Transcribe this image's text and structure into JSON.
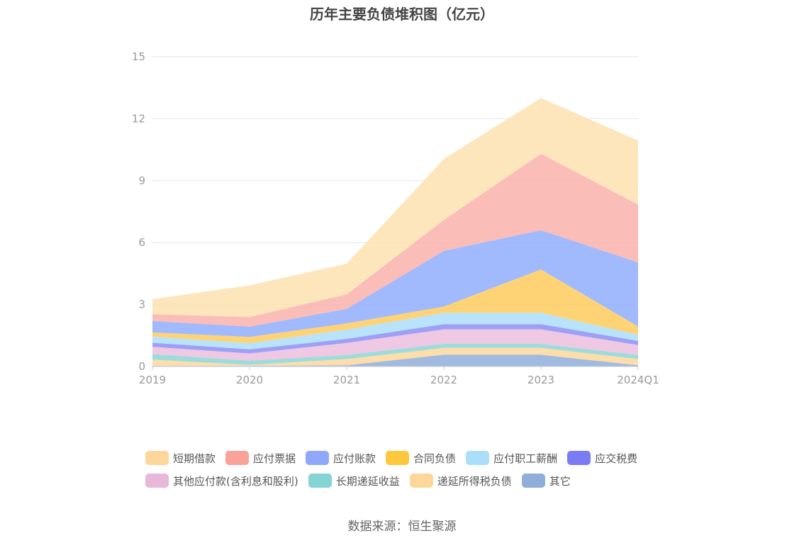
{
  "chart_data": {
    "type": "area",
    "stacked": true,
    "title": "历年主要负债堆积图（亿元）",
    "x": [
      "2019",
      "2020",
      "2021",
      "2022",
      "2023",
      "2024Q1"
    ],
    "ylim": [
      0,
      15
    ],
    "yticks": [
      "0",
      "3",
      "6",
      "9",
      "12",
      "15"
    ],
    "grid": "horizontal",
    "legend_position": "bottom",
    "series": [
      {
        "name": "其它",
        "color": "#8fafd9",
        "values": [
          0.03,
          0.03,
          0.06,
          0.57,
          0.57,
          0.06
        ]
      },
      {
        "name": "递延所得税负债",
        "color": "#fdd79a",
        "values": [
          0.3,
          0.05,
          0.3,
          0.33,
          0.33,
          0.3
        ]
      },
      {
        "name": "长期递延收益",
        "color": "#8dd6d6",
        "values": [
          0.27,
          0.2,
          0.2,
          0.2,
          0.2,
          0.2
        ]
      },
      {
        "name": "其他应付款(含利息和股利)",
        "color": "#ecbedf",
        "values": [
          0.35,
          0.35,
          0.58,
          0.7,
          0.7,
          0.48
        ]
      },
      {
        "name": "应交税费",
        "color": "#8d8ff5",
        "values": [
          0.2,
          0.2,
          0.2,
          0.25,
          0.25,
          0.2
        ]
      },
      {
        "name": "应付职工薪酬",
        "color": "#abdef9",
        "values": [
          0.3,
          0.3,
          0.45,
          0.55,
          0.55,
          0.3
        ]
      },
      {
        "name": "合同负债",
        "color": "#fdcb5e",
        "values": [
          0.2,
          0.3,
          0.3,
          0.3,
          2.1,
          0.4
        ]
      },
      {
        "name": "应付账款",
        "color": "#91adfd",
        "values": [
          0.55,
          0.5,
          0.7,
          2.7,
          1.9,
          3.1
        ]
      },
      {
        "name": "应付票据",
        "color": "#fab1ab",
        "values": [
          0.33,
          0.47,
          0.7,
          1.5,
          3.7,
          2.8
        ]
      },
      {
        "name": "短期借款",
        "color": "#fde2b0",
        "values": [
          0.73,
          1.53,
          1.49,
          2.95,
          2.7,
          3.1
        ]
      }
    ]
  },
  "legend": {
    "rows": [
      [
        {
          "label": "短期借款",
          "color": "#fdd79a"
        },
        {
          "label": "应付票据",
          "color": "#f9a29a"
        },
        {
          "label": "应付账款",
          "color": "#8fa8fb"
        },
        {
          "label": "合同负债",
          "color": "#fdc73e"
        },
        {
          "label": "应付职工薪酬",
          "color": "#abdef9"
        },
        {
          "label": "应交税费",
          "color": "#7b7cf3"
        }
      ],
      [
        {
          "label": "其他应付款(含利息和股利)",
          "color": "#e8b8db"
        },
        {
          "label": "长期递延收益",
          "color": "#86d3d3"
        },
        {
          "label": "递延所得税负债",
          "color": "#fdd79a"
        },
        {
          "label": "其它",
          "color": "#8fafd9"
        }
      ]
    ]
  },
  "source": "数据来源：恒生聚源"
}
